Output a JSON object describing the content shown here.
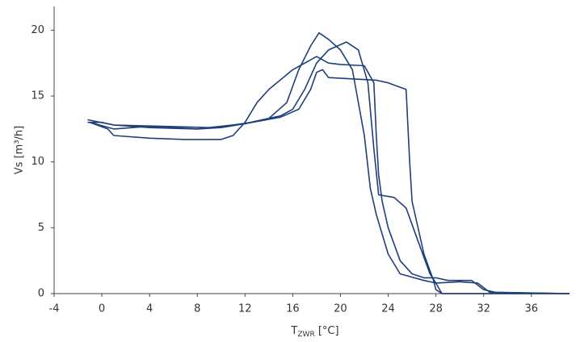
{
  "chart_data": {
    "type": "line",
    "ylabel": "Vs [m³/h]",
    "xlabel": [
      "T",
      "ZWR",
      " [°C]"
    ],
    "xlim": [
      -4,
      39.2
    ],
    "xticks": [
      -4,
      0,
      4,
      8,
      12,
      16,
      20,
      24,
      28,
      32,
      36
    ],
    "ylim": [
      0,
      21.8
    ],
    "yticks": [
      0,
      5,
      10,
      15,
      20
    ],
    "grid": false,
    "series": [
      {
        "color": "#1f3f7a",
        "x": [
          -1.2,
          0,
          1,
          4,
          8,
          10,
          12,
          14,
          15.5,
          16.5,
          17.5,
          18.2,
          19,
          20,
          21,
          22,
          22.5,
          23,
          24,
          25,
          27,
          28,
          28.5,
          39.2
        ],
        "values": [
          13,
          13,
          12.8,
          12.6,
          12.5,
          12.6,
          12.9,
          13.3,
          14.5,
          17,
          18.8,
          19.8,
          19.3,
          18.5,
          17,
          12,
          8,
          6,
          3,
          1.5,
          1,
          0.8,
          0,
          0
        ]
      },
      {
        "color": "#1f3f7a",
        "x": [
          -1.2,
          1,
          5,
          9,
          11,
          12.5,
          15,
          16,
          17,
          18,
          19,
          20.5,
          21.5,
          22.3,
          22.8,
          23.2,
          24.5,
          25.5,
          26.5,
          27.5,
          28,
          30,
          31.5,
          32.5,
          39.2
        ],
        "values": [
          13.2,
          12.8,
          12.7,
          12.6,
          12.8,
          13,
          13.5,
          14,
          15.5,
          17.5,
          18.5,
          19.1,
          18.5,
          16,
          11,
          7.5,
          7.3,
          6.5,
          4,
          1.5,
          0.8,
          0.9,
          0.8,
          0.1,
          0
        ]
      },
      {
        "color": "#1f3f7a",
        "x": [
          -1,
          1,
          4,
          8,
          12,
          15,
          16.5,
          17.5,
          18,
          18.5,
          19,
          21,
          23,
          24,
          25.5,
          25.8,
          26,
          27,
          27.8,
          28,
          28.5,
          39.2
        ],
        "values": [
          13,
          12.5,
          12.7,
          12.5,
          12.9,
          13.4,
          14,
          15.5,
          16.8,
          17,
          16.4,
          16.3,
          16.2,
          16,
          15.5,
          10,
          7,
          3,
          1,
          0.3,
          0,
          0
        ]
      },
      {
        "color": "#1f3f7a",
        "x": [
          -1,
          0.5,
          1,
          4,
          7,
          10,
          11,
          12,
          13,
          14,
          16,
          18,
          19,
          20,
          22,
          22.8,
          23,
          23.2,
          23.5,
          24,
          25,
          26,
          27,
          28,
          29,
          31,
          32,
          33,
          39.2
        ],
        "values": [
          13,
          12.5,
          12,
          11.8,
          11.7,
          11.7,
          12,
          13,
          14.5,
          15.5,
          17,
          18,
          17.5,
          17.4,
          17.3,
          16,
          12,
          9,
          7,
          5,
          2.5,
          1.5,
          1.2,
          1.2,
          1,
          1,
          0.3,
          0.1,
          0
        ]
      }
    ]
  }
}
